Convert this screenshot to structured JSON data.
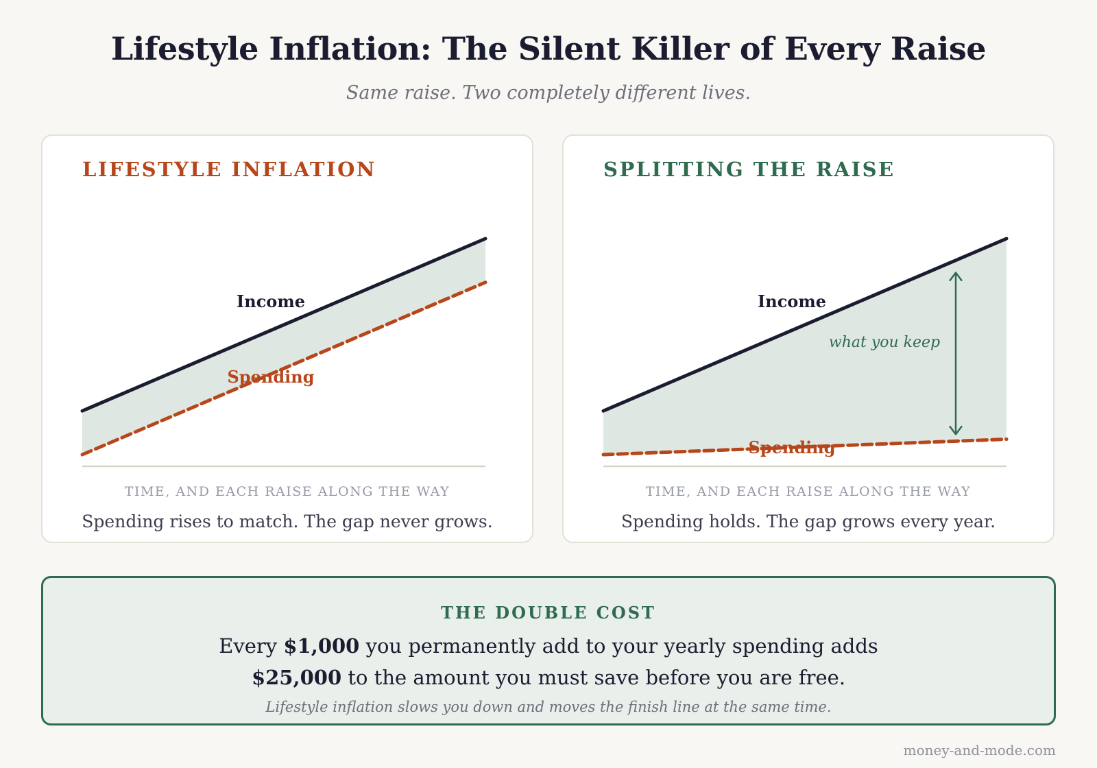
{
  "header": {
    "title": "Lifestyle Inflation: The Silent Killer of Every Raise",
    "subtitle": "Same raise. Two completely different lives."
  },
  "colors": {
    "income": "#1b1c30",
    "spending": "#b8461b",
    "gap_fill": "#dfe7e2",
    "keep": "#2f6b4f",
    "axis": "#d8d4cc"
  },
  "chart_data": [
    {
      "type": "line",
      "title": "LIFESTYLE INFLATION",
      "xlabel": "TIME, AND EACH RAISE ALONG THE WAY",
      "caption": "Spending rises to match. The gap never grows.",
      "x": [
        0,
        1
      ],
      "ylim": [
        0,
        1
      ],
      "series": [
        {
          "name": "Income",
          "style": "solid",
          "values": [
            0.33,
            1.0
          ]
        },
        {
          "name": "Spending",
          "style": "dashed",
          "values": [
            0.16,
            0.83
          ]
        }
      ],
      "shaded_gap": true,
      "annotation": ""
    },
    {
      "type": "line",
      "title": "SPLITTING THE RAISE",
      "xlabel": "TIME, AND EACH RAISE ALONG THE WAY",
      "caption": "Spending holds. The gap grows every year.",
      "x": [
        0,
        1
      ],
      "ylim": [
        0,
        1
      ],
      "series": [
        {
          "name": "Income",
          "style": "solid",
          "values": [
            0.33,
            1.0
          ]
        },
        {
          "name": "Spending",
          "style": "dashed",
          "values": [
            0.16,
            0.22
          ]
        }
      ],
      "shaded_gap": true,
      "annotation": "what you keep"
    }
  ],
  "callout": {
    "heading": "THE DOUBLE COST",
    "line1_pre": "Every ",
    "line1_amount": "$1,000",
    "line1_post": " you permanently add to your yearly spending adds",
    "line2_amount": "$25,000",
    "line2_post": " to the amount you must save before you are free.",
    "note": "Lifestyle inflation slows you down and moves the finish line at the same time."
  },
  "footer": {
    "site": "money-and-mode.com"
  }
}
